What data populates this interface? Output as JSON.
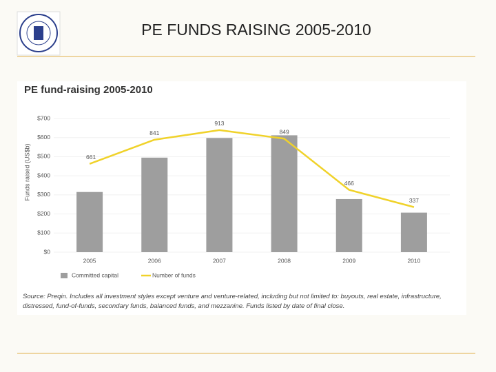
{
  "slide_title": "PE FUNDS RAISING 2005-2010",
  "chart_data": {
    "type": "bar",
    "title": "PE fund-raising 2005-2010",
    "y_label": "Funds raised (US$b)",
    "categories": [
      "2005",
      "2006",
      "2007",
      "2008",
      "2009",
      "2010"
    ],
    "series": [
      {
        "name": "Committed capital",
        "color": "#9e9e9e",
        "values": [
          315,
          495,
          598,
          612,
          278,
          207
        ]
      },
      {
        "name": "Number of funds",
        "type": "line",
        "axis": "y2",
        "color": "#f0d22a",
        "values": [
          661,
          841,
          913,
          849,
          466,
          337
        ]
      }
    ],
    "ylim": [
      0,
      700
    ],
    "yticks": [
      {
        "value": 0,
        "label": "$0"
      },
      {
        "value": 100,
        "label": "$100"
      },
      {
        "value": 200,
        "label": "$200"
      },
      {
        "value": 300,
        "label": "$300"
      },
      {
        "value": 400,
        "label": "$400"
      },
      {
        "value": 500,
        "label": "$500"
      },
      {
        "value": 600,
        "label": "$600"
      },
      {
        "value": 700,
        "label": "$700"
      }
    ],
    "y2lim": [
      0,
      1000
    ],
    "grid": true,
    "source": "Source: Preqin. Includes all investment styles except venture and venture-related, including but not limited to: buyouts, real estate, infrastructure, distressed, fund-of-funds, secondary funds, balanced funds, and mezzanine. Funds listed by date of final close."
  }
}
